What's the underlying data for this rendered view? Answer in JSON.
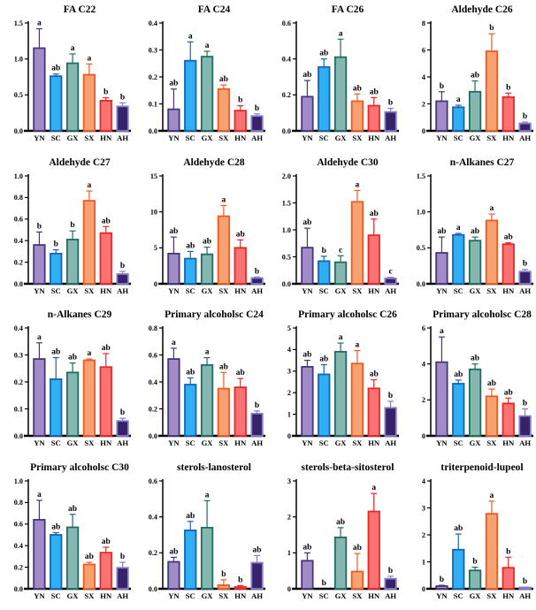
{
  "figure": {
    "description": "Grid of 16 bar charts comparing wax/compound content across six provinces",
    "grid": {
      "cols": 4,
      "rows": 4
    }
  },
  "style": {
    "bar_fills": [
      "#a18cc9",
      "#2fb0f5",
      "#83b7b0",
      "#f9a271",
      "#f97373",
      "#35226b"
    ],
    "bar_strokes": [
      "#473677",
      "#1763b2",
      "#226b62",
      "#ef5a24",
      "#ee2526",
      "#8a7cc9"
    ],
    "err_strokes": [
      "#473677",
      "#1763b2",
      "#226b62",
      "#ef5a24",
      "#ee2526",
      "#8a7cc9"
    ],
    "axis_color": "#000000",
    "letter_color": "#000000"
  },
  "chart_data": [
    {
      "type": "bar",
      "title": "FA C22",
      "categories": [
        "YN",
        "SC",
        "GX",
        "SX",
        "HN",
        "AH"
      ],
      "values": [
        1.15,
        0.76,
        0.94,
        0.78,
        0.42,
        0.34
      ],
      "errors": [
        0.27,
        0.03,
        0.13,
        0.15,
        0.04,
        0.05
      ],
      "letters": [
        "a",
        "ab",
        "a",
        "a",
        "b",
        "b"
      ],
      "ylim": [
        0,
        1.5
      ],
      "yticks": [
        0,
        0.5,
        1.0,
        1.5
      ],
      "ytick_labels": [
        "0.0",
        "0.5",
        "1.0",
        "1.5"
      ],
      "xlabel": "",
      "ylabel": "",
      "grid": false,
      "legend": "none"
    },
    {
      "type": "bar",
      "title": "FA C24",
      "categories": [
        "YN",
        "SC",
        "GX",
        "SX",
        "HN",
        "AH"
      ],
      "values": [
        0.08,
        0.26,
        0.275,
        0.155,
        0.075,
        0.055
      ],
      "errors": [
        0.075,
        0.07,
        0.02,
        0.015,
        0.018,
        0.008
      ],
      "letters": [
        "ab",
        "a",
        "a",
        "ab",
        "b",
        "b"
      ],
      "ylim": [
        0,
        0.4
      ],
      "yticks": [
        0,
        0.1,
        0.2,
        0.3,
        0.4
      ],
      "ytick_labels": [
        "0.0",
        "0.1",
        "0.2",
        "0.3",
        "0.4"
      ],
      "xlabel": "",
      "ylabel": "",
      "grid": false,
      "legend": "none"
    },
    {
      "type": "bar",
      "title": "FA C26",
      "categories": [
        "YN",
        "SC",
        "GX",
        "SX",
        "HN",
        "AH"
      ],
      "values": [
        0.19,
        0.355,
        0.41,
        0.165,
        0.14,
        0.105
      ],
      "errors": [
        0.09,
        0.045,
        0.1,
        0.04,
        0.045,
        0.02
      ],
      "letters": [
        "ab",
        "ab",
        "a",
        "ab",
        "ab",
        "b"
      ],
      "ylim": [
        0,
        0.6
      ],
      "yticks": [
        0,
        0.2,
        0.4,
        0.6
      ],
      "ytick_labels": [
        "0.0",
        "0.2",
        "0.4",
        "0.6"
      ],
      "xlabel": "",
      "ylabel": "",
      "grid": false,
      "legend": "none"
    },
    {
      "type": "bar",
      "title": "Aldehyde C26",
      "categories": [
        "YN",
        "SC",
        "GX",
        "SX",
        "HN",
        "AH"
      ],
      "values": [
        2.2,
        1.75,
        2.9,
        5.9,
        2.5,
        0.55
      ],
      "errors": [
        0.7,
        0.15,
        0.8,
        1.3,
        0.3,
        0.1
      ],
      "letters": [
        "b",
        "a",
        "ab",
        "b",
        "b",
        "b"
      ],
      "ylim": [
        0,
        8
      ],
      "yticks": [
        0,
        2,
        4,
        6,
        8
      ],
      "ytick_labels": [
        "0",
        "2",
        "4",
        "6",
        "8"
      ],
      "xlabel": "",
      "ylabel": "",
      "grid": false,
      "legend": "none"
    },
    {
      "type": "bar",
      "title": "Aldehyde C27",
      "categories": [
        "YN",
        "SC",
        "GX",
        "SX",
        "HN",
        "AH"
      ],
      "values": [
        0.36,
        0.28,
        0.41,
        0.77,
        0.47,
        0.09
      ],
      "errors": [
        0.12,
        0.035,
        0.08,
        0.09,
        0.06,
        0.025
      ],
      "letters": [
        "b",
        "b",
        "b",
        "a",
        "ab",
        "b"
      ],
      "ylim": [
        0,
        1.0
      ],
      "yticks": [
        0,
        0.2,
        0.4,
        0.6,
        0.8,
        1.0
      ],
      "ytick_labels": [
        "0.0",
        "0.2",
        "0.4",
        "0.6",
        "0.8",
        "1.0"
      ],
      "xlabel": "",
      "ylabel": "",
      "grid": false,
      "legend": "none"
    },
    {
      "type": "bar",
      "title": "Aldehyde C28",
      "categories": [
        "YN",
        "SC",
        "GX",
        "SX",
        "HN",
        "AH"
      ],
      "values": [
        4.2,
        3.5,
        4.1,
        9.4,
        5.0,
        0.8
      ],
      "errors": [
        2.3,
        1.0,
        1.0,
        1.5,
        1.1,
        0.15
      ],
      "letters": [
        "ab",
        "ab",
        "ab",
        "a",
        "ab",
        "b"
      ],
      "ylim": [
        0,
        15
      ],
      "yticks": [
        0,
        5,
        10,
        15
      ],
      "ytick_labels": [
        "0",
        "5",
        "10",
        "15"
      ],
      "xlabel": "",
      "ylabel": "",
      "grid": false,
      "legend": "none"
    },
    {
      "type": "bar",
      "title": "Aldehyde C30",
      "categories": [
        "YN",
        "SC",
        "GX",
        "SX",
        "HN",
        "AH"
      ],
      "values": [
        0.67,
        0.42,
        0.4,
        1.52,
        0.9,
        0.1
      ],
      "errors": [
        0.36,
        0.09,
        0.12,
        0.21,
        0.3,
        0.02
      ],
      "letters": [
        "ab",
        "b",
        "c",
        "a",
        "ab",
        "c"
      ],
      "ylim": [
        0,
        2.0
      ],
      "yticks": [
        0,
        0.5,
        1.0,
        1.5,
        2.0
      ],
      "ytick_labels": [
        "0.0",
        "0.5",
        "1.0",
        "1.5",
        "2.0"
      ],
      "xlabel": "",
      "ylabel": "",
      "grid": false,
      "legend": "none"
    },
    {
      "type": "bar",
      "title": "n-Alkanes C27",
      "categories": [
        "YN",
        "SC",
        "GX",
        "SX",
        "HN",
        "AH"
      ],
      "values": [
        0.43,
        0.68,
        0.6,
        0.88,
        0.55,
        0.17
      ],
      "errors": [
        0.22,
        0.02,
        0.05,
        0.09,
        0.02,
        0.03
      ],
      "letters": [
        "ab",
        "a",
        "ab",
        "a",
        "ab",
        "b"
      ],
      "ylim": [
        0,
        1.5
      ],
      "yticks": [
        0,
        0.5,
        1.0,
        1.5
      ],
      "ytick_labels": [
        "0.0",
        "0.5",
        "1.0",
        "1.5"
      ],
      "xlabel": "",
      "ylabel": "",
      "grid": false,
      "legend": "none"
    },
    {
      "type": "bar",
      "title": "n-Alkanes C29",
      "categories": [
        "YN",
        "SC",
        "GX",
        "SX",
        "HN",
        "AH"
      ],
      "values": [
        0.285,
        0.21,
        0.235,
        0.28,
        0.255,
        0.055
      ],
      "errors": [
        0.06,
        0.08,
        0.035,
        0.005,
        0.05,
        0.01
      ],
      "letters": [
        "a",
        "ab",
        "ab",
        "a",
        "ab",
        "b"
      ],
      "ylim": [
        0,
        0.4
      ],
      "yticks": [
        0,
        0.1,
        0.2,
        0.3,
        0.4
      ],
      "ytick_labels": [
        "0.0",
        "0.1",
        "0.2",
        "0.3",
        "0.4"
      ],
      "xlabel": "",
      "ylabel": "",
      "grid": false,
      "legend": "none"
    },
    {
      "type": "bar",
      "title": "Primary alcoholsc C24",
      "categories": [
        "YN",
        "SC",
        "GX",
        "SX",
        "HN",
        "AH"
      ],
      "values": [
        0.57,
        0.38,
        0.525,
        0.35,
        0.36,
        0.165
      ],
      "errors": [
        0.08,
        0.05,
        0.055,
        0.12,
        0.065,
        0.02
      ],
      "letters": [
        "a",
        "ab",
        "a",
        "ab",
        "ab",
        "b"
      ],
      "ylim": [
        0,
        0.8
      ],
      "yticks": [
        0,
        0.2,
        0.4,
        0.6,
        0.8
      ],
      "ytick_labels": [
        "0.0",
        "0.2",
        "0.4",
        "0.6",
        "0.8"
      ],
      "xlabel": "",
      "ylabel": "",
      "grid": false,
      "legend": "none"
    },
    {
      "type": "bar",
      "title": "Primary alcoholsc C26",
      "categories": [
        "YN",
        "SC",
        "GX",
        "SX",
        "HN",
        "AH"
      ],
      "values": [
        3.2,
        2.85,
        3.9,
        3.35,
        2.2,
        1.3
      ],
      "errors": [
        0.3,
        0.45,
        0.4,
        0.6,
        0.4,
        0.3
      ],
      "letters": [
        "ab",
        "ab",
        "a",
        "a",
        "ab",
        "b"
      ],
      "ylim": [
        0,
        5
      ],
      "yticks": [
        0,
        1,
        2,
        3,
        4,
        5
      ],
      "ytick_labels": [
        "0",
        "1",
        "2",
        "3",
        "4",
        "5"
      ],
      "xlabel": "",
      "ylabel": "",
      "grid": false,
      "legend": "none"
    },
    {
      "type": "bar",
      "title": "Primary alcoholsc C28",
      "categories": [
        "YN",
        "SC",
        "GX",
        "SX",
        "HN",
        "AH"
      ],
      "values": [
        4.1,
        2.9,
        3.7,
        2.2,
        1.8,
        1.1
      ],
      "errors": [
        1.4,
        0.2,
        0.3,
        0.4,
        0.3,
        0.4
      ],
      "letters": [
        "a",
        "ab",
        "ab",
        "ab",
        "ab",
        "b"
      ],
      "ylim": [
        0,
        6
      ],
      "yticks": [
        0,
        2,
        4,
        6
      ],
      "ytick_labels": [
        "0",
        "2",
        "4",
        "6"
      ],
      "xlabel": "",
      "ylabel": "",
      "grid": false,
      "legend": "none"
    },
    {
      "type": "bar",
      "title": "Primary alcoholsc C30",
      "categories": [
        "YN",
        "SC",
        "GX",
        "SX",
        "HN",
        "AH"
      ],
      "values": [
        0.64,
        0.5,
        0.57,
        0.225,
        0.335,
        0.195
      ],
      "errors": [
        0.18,
        0.02,
        0.12,
        0.02,
        0.05,
        0.05
      ],
      "letters": [
        "a",
        "ab",
        "ab",
        "ab",
        "ab",
        "b"
      ],
      "ylim": [
        0,
        1.0
      ],
      "yticks": [
        0,
        0.2,
        0.4,
        0.6,
        0.8,
        1.0
      ],
      "ytick_labels": [
        "0.0",
        "0.2",
        "0.4",
        "0.6",
        "0.8",
        "1.0"
      ],
      "xlabel": "",
      "ylabel": "",
      "grid": false,
      "legend": "none"
    },
    {
      "type": "bar",
      "title": "sterols-lanosterol",
      "categories": [
        "YN",
        "SC",
        "GX",
        "SX",
        "HN",
        "AH"
      ],
      "values": [
        0.15,
        0.325,
        0.34,
        0.02,
        0.01,
        0.145
      ],
      "errors": [
        0.025,
        0.05,
        0.15,
        0.03,
        0.008,
        0.04
      ],
      "letters": [
        "ab",
        "ab",
        "a",
        "b",
        "b",
        "ab"
      ],
      "ylim": [
        0,
        0.6
      ],
      "yticks": [
        0,
        0.2,
        0.4,
        0.6
      ],
      "ytick_labels": [
        "0.0",
        "0.2",
        "0.4",
        "0.6"
      ],
      "xlabel": "",
      "ylabel": "",
      "grid": false,
      "legend": "none"
    },
    {
      "type": "bar",
      "title": "sterols-beta-sitosterol",
      "categories": [
        "YN",
        "SC",
        "GX",
        "SX",
        "HN",
        "AH"
      ],
      "values": [
        0.78,
        0.0,
        1.43,
        0.48,
        2.15,
        0.28
      ],
      "errors": [
        0.22,
        0.0,
        0.27,
        0.5,
        0.5,
        0.07
      ],
      "letters": [
        "ab",
        "b",
        "ab",
        "ab",
        "a",
        "b"
      ],
      "ylim": [
        0,
        3
      ],
      "yticks": [
        0,
        1,
        2,
        3
      ],
      "ytick_labels": [
        "0",
        "1",
        "2",
        "3"
      ],
      "xlabel": "",
      "ylabel": "",
      "grid": false,
      "legend": "none"
    },
    {
      "type": "bar",
      "title": "triterpenoid-lupeol",
      "categories": [
        "YN",
        "SC",
        "GX",
        "SX",
        "HN",
        "AH"
      ],
      "values": [
        0.1,
        1.45,
        0.68,
        2.78,
        0.78,
        0.05
      ],
      "errors": [
        0.03,
        0.58,
        0.12,
        0.47,
        0.39,
        0.01
      ],
      "letters": [
        "b",
        "ab",
        "b",
        "a",
        "b",
        "b"
      ],
      "ylim": [
        0,
        4
      ],
      "yticks": [
        0,
        1,
        2,
        3,
        4
      ],
      "ytick_labels": [
        "0",
        "1",
        "2",
        "3",
        "4"
      ],
      "xlabel": "",
      "ylabel": "",
      "grid": false,
      "legend": "none"
    }
  ]
}
